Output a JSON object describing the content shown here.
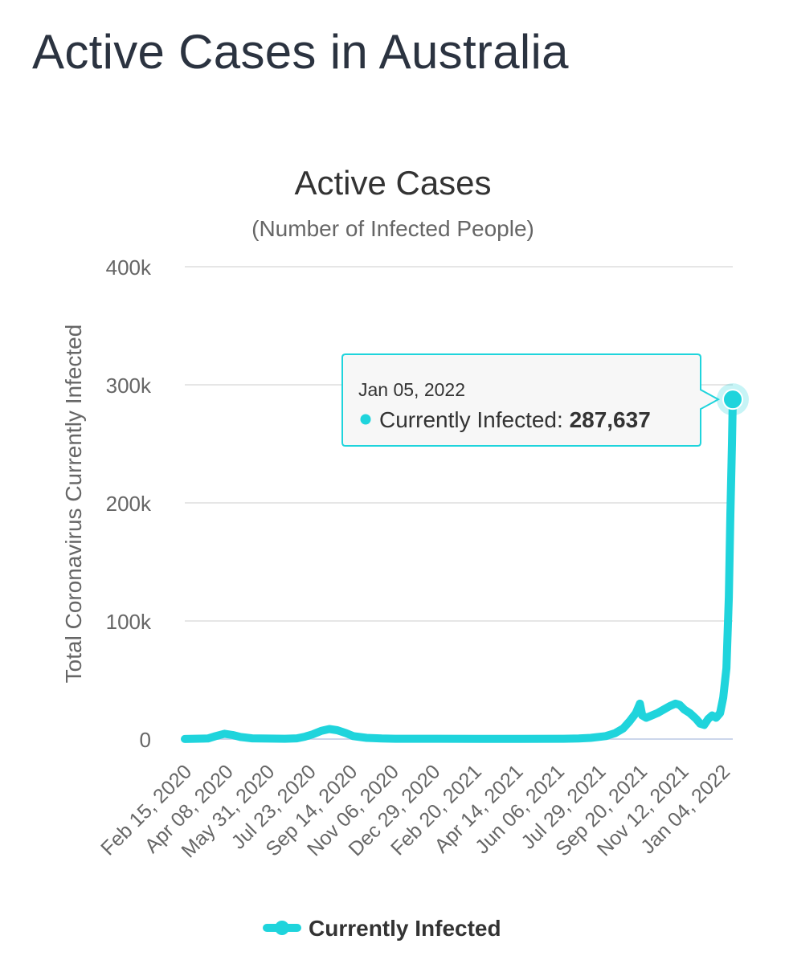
{
  "page": {
    "title": "Active Cases in Australia"
  },
  "chart_data": {
    "type": "line",
    "title": "Active Cases",
    "subtitle": "(Number of Infected People)",
    "xlabel": "",
    "ylabel": "Total Coronavirus Currently Infected",
    "ylim": [
      0,
      400000
    ],
    "y_ticks": [
      0,
      100000,
      200000,
      300000,
      400000
    ],
    "y_tick_labels": [
      "0",
      "100k",
      "200k",
      "300k",
      "400k"
    ],
    "x_tick_labels": [
      "Feb 15, 2020",
      "Apr 08, 2020",
      "May 31, 2020",
      "Jul 23, 2020",
      "Sep 14, 2020",
      "Nov 06, 2020",
      "Dec 29, 2020",
      "Feb 20, 2021",
      "Apr 14, 2021",
      "Jun 06, 2021",
      "Jul 29, 2021",
      "Sep 20, 2021",
      "Nov 12, 2021",
      "Jan 04, 2022"
    ],
    "x_range": [
      "2020-02-15",
      "2022-01-05"
    ],
    "grid": true,
    "legend_position": "bottom",
    "series": [
      {
        "name": "Currently Infected",
        "color": "#1fd4dc",
        "points": [
          [
            "2020-02-15",
            100
          ],
          [
            "2020-03-15",
            500
          ],
          [
            "2020-03-25",
            2500
          ],
          [
            "2020-04-05",
            4500
          ],
          [
            "2020-04-15",
            3500
          ],
          [
            "2020-04-25",
            1800
          ],
          [
            "2020-05-10",
            600
          ],
          [
            "2020-05-31",
            400
          ],
          [
            "2020-06-20",
            300
          ],
          [
            "2020-07-05",
            600
          ],
          [
            "2020-07-15",
            2000
          ],
          [
            "2020-07-25",
            4000
          ],
          [
            "2020-08-05",
            7000
          ],
          [
            "2020-08-15",
            8500
          ],
          [
            "2020-08-25",
            7500
          ],
          [
            "2020-09-05",
            5000
          ],
          [
            "2020-09-14",
            2500
          ],
          [
            "2020-10-01",
            1000
          ],
          [
            "2020-10-20",
            500
          ],
          [
            "2020-11-06",
            300
          ],
          [
            "2020-12-29",
            250
          ],
          [
            "2021-02-20",
            200
          ],
          [
            "2021-04-14",
            200
          ],
          [
            "2021-06-06",
            250
          ],
          [
            "2021-06-25",
            500
          ],
          [
            "2021-07-10",
            1000
          ],
          [
            "2021-07-29",
            2500
          ],
          [
            "2021-08-10",
            5000
          ],
          [
            "2021-08-20",
            9000
          ],
          [
            "2021-08-28",
            15000
          ],
          [
            "2021-09-05",
            22000
          ],
          [
            "2021-09-10",
            30000
          ],
          [
            "2021-09-13",
            20000
          ],
          [
            "2021-09-18",
            18000
          ],
          [
            "2021-09-25",
            20000
          ],
          [
            "2021-10-02",
            22000
          ],
          [
            "2021-10-10",
            25000
          ],
          [
            "2021-10-18",
            28000
          ],
          [
            "2021-10-25",
            30000
          ],
          [
            "2021-10-30",
            29000
          ],
          [
            "2021-11-05",
            25000
          ],
          [
            "2021-11-12",
            22000
          ],
          [
            "2021-11-20",
            17000
          ],
          [
            "2021-11-25",
            13000
          ],
          [
            "2021-11-30",
            12000
          ],
          [
            "2021-12-05",
            17000
          ],
          [
            "2021-12-10",
            20000
          ],
          [
            "2021-12-15",
            18000
          ],
          [
            "2021-12-20",
            22000
          ],
          [
            "2021-12-24",
            35000
          ],
          [
            "2021-12-28",
            60000
          ],
          [
            "2021-12-31",
            120000
          ],
          [
            "2022-01-02",
            190000
          ],
          [
            "2022-01-04",
            250000
          ],
          [
            "2022-01-05",
            287637
          ]
        ]
      }
    ],
    "tooltip": {
      "date": "Jan 05, 2022",
      "series_name": "Currently Infected",
      "value_label": "287,637",
      "point": [
        "2022-01-05",
        287637
      ]
    },
    "colors": {
      "series": "#1fd4dc",
      "grid": "#e6e6e6",
      "tooltip_border": "#1fd4dc",
      "text": "#666666"
    }
  }
}
